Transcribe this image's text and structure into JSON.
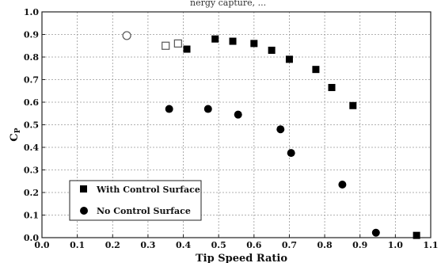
{
  "top_fragment": "nergy capture, ...",
  "chart_data": {
    "type": "scatter",
    "title": "",
    "xlabel": "Tip Speed Ratio",
    "ylabel_main": "C",
    "ylabel_sub": "P",
    "xlim": [
      0.0,
      1.1
    ],
    "ylim": [
      0.0,
      1.0
    ],
    "x_ticks": [
      "0.0",
      "0.1",
      "0.2",
      "0.3",
      "0.4",
      "0.5",
      "0.6",
      "0.7",
      "0.8",
      "0.9",
      "1.0",
      "1.1"
    ],
    "y_ticks": [
      "0.0",
      "0.1",
      "0.2",
      "0.3",
      "0.4",
      "0.5",
      "0.6",
      "0.7",
      "0.8",
      "0.9",
      "1.0"
    ],
    "grid": true,
    "legend_position": "bottom-left",
    "series": [
      {
        "name": "With Control Surface",
        "marker": "filled-square",
        "color": "#000000",
        "points": [
          {
            "x": 0.41,
            "y": 0.835
          },
          {
            "x": 0.49,
            "y": 0.88
          },
          {
            "x": 0.54,
            "y": 0.87
          },
          {
            "x": 0.6,
            "y": 0.86
          },
          {
            "x": 0.65,
            "y": 0.83
          },
          {
            "x": 0.7,
            "y": 0.79
          },
          {
            "x": 0.775,
            "y": 0.745
          },
          {
            "x": 0.82,
            "y": 0.665
          },
          {
            "x": 0.88,
            "y": 0.585
          },
          {
            "x": 1.06,
            "y": 0.01
          }
        ]
      },
      {
        "name": "No Control Surface",
        "marker": "filled-circle",
        "color": "#000000",
        "points": [
          {
            "x": 0.36,
            "y": 0.57
          },
          {
            "x": 0.47,
            "y": 0.57
          },
          {
            "x": 0.555,
            "y": 0.545
          },
          {
            "x": 0.675,
            "y": 0.48
          },
          {
            "x": 0.705,
            "y": 0.375
          },
          {
            "x": 0.85,
            "y": 0.235
          },
          {
            "x": 0.945,
            "y": 0.022
          }
        ]
      },
      {
        "marker": "open-square",
        "color": "#555555",
        "points": [
          {
            "x": 0.35,
            "y": 0.85
          },
          {
            "x": 0.385,
            "y": 0.86
          }
        ]
      },
      {
        "marker": "open-circle",
        "color": "#555555",
        "points": [
          {
            "x": 0.24,
            "y": 0.895
          }
        ]
      }
    ]
  }
}
